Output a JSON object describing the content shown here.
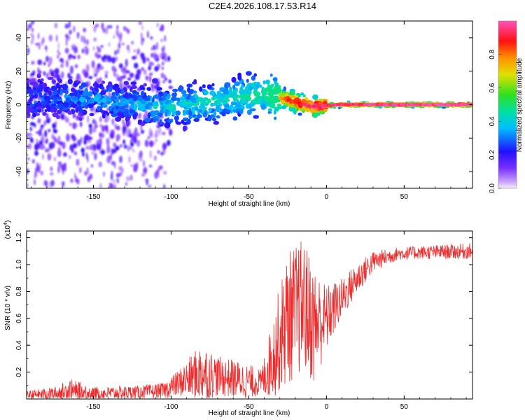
{
  "title": "C2E4.2026.108.17.53.R14",
  "chart_data": [
    {
      "type": "heatmap",
      "name": "spectrogram",
      "xlabel": "Height of straight line (km)",
      "ylabel": "Frequency (Hz)",
      "xlim": [
        -193,
        94
      ],
      "ylim": [
        -50,
        50
      ],
      "xticks": [
        -150,
        -100,
        -50,
        0,
        50
      ],
      "yticks": [
        -40,
        -20,
        0,
        20,
        40
      ],
      "xtick_labels": [
        "-150",
        "-100",
        "-50",
        "0",
        "50"
      ],
      "ytick_labels": [
        "-40",
        "-20",
        "0",
        "20",
        "40"
      ],
      "colorbar": {
        "label": "Normalized spectral amplitude",
        "range": [
          0,
          1
        ],
        "ticks": [
          0.0,
          0.2,
          0.4,
          0.6,
          0.8
        ],
        "tick_labels": [
          "0.0",
          "0.2",
          "0.4",
          "0.6",
          "0.8"
        ]
      },
      "ridge": [
        {
          "x": -193,
          "f": 4,
          "amp": 0.2
        },
        {
          "x": -150,
          "f": 3,
          "amp": 0.25
        },
        {
          "x": -100,
          "f": -2,
          "amp": 0.35
        },
        {
          "x": -60,
          "f": 4,
          "amp": 0.4
        },
        {
          "x": -40,
          "f": 6,
          "amp": 0.45
        },
        {
          "x": -25,
          "f": 3,
          "amp": 0.85
        },
        {
          "x": -10,
          "f": -1,
          "amp": 0.95
        },
        {
          "x": 10,
          "f": 0,
          "amp": 0.95
        },
        {
          "x": 94,
          "f": 0,
          "amp": 1.0
        }
      ]
    },
    {
      "type": "line",
      "name": "snr",
      "xlabel": "Height of straight line (km)",
      "ylabel": "SNR (10 * v/v)",
      "yscale_label": "(x10",
      "yscale_exp": "4",
      "xlim": [
        -193,
        94
      ],
      "ylim": [
        0,
        1.25
      ],
      "xticks": [
        -150,
        -100,
        -50,
        0,
        50
      ],
      "yticks": [
        0.2,
        0.4,
        0.6,
        0.8,
        1.0,
        1.2
      ],
      "xtick_labels": [
        "-150",
        "-100",
        "-50",
        "0",
        "50"
      ],
      "ytick_labels": [
        "0.2",
        "0.4",
        "0.6",
        "0.8",
        "1.0",
        "1.2"
      ],
      "color": "#ee2a2a",
      "envelope": [
        {
          "x": -193,
          "mean": 0.03,
          "noise": 0.03
        },
        {
          "x": -175,
          "mean": 0.04,
          "noise": 0.05
        },
        {
          "x": -165,
          "mean": 0.06,
          "noise": 0.09
        },
        {
          "x": -150,
          "mean": 0.04,
          "noise": 0.05
        },
        {
          "x": -120,
          "mean": 0.05,
          "noise": 0.05
        },
        {
          "x": -105,
          "mean": 0.06,
          "noise": 0.06
        },
        {
          "x": -95,
          "mean": 0.12,
          "noise": 0.1
        },
        {
          "x": -80,
          "mean": 0.2,
          "noise": 0.22
        },
        {
          "x": -70,
          "mean": 0.17,
          "noise": 0.15
        },
        {
          "x": -55,
          "mean": 0.14,
          "noise": 0.14
        },
        {
          "x": -42,
          "mean": 0.12,
          "noise": 0.1
        },
        {
          "x": -35,
          "mean": 0.3,
          "noise": 0.3
        },
        {
          "x": -25,
          "mean": 0.6,
          "noise": 0.5
        },
        {
          "x": -15,
          "mean": 0.7,
          "noise": 0.5
        },
        {
          "x": -8,
          "mean": 0.55,
          "noise": 0.45
        },
        {
          "x": 0,
          "mean": 0.6,
          "noise": 0.25
        },
        {
          "x": 10,
          "mean": 0.75,
          "noise": 0.15
        },
        {
          "x": 20,
          "mean": 0.9,
          "noise": 0.12
        },
        {
          "x": 30,
          "mean": 1.02,
          "noise": 0.08
        },
        {
          "x": 45,
          "mean": 1.08,
          "noise": 0.05
        },
        {
          "x": 60,
          "mean": 1.09,
          "noise": 0.05
        },
        {
          "x": 94,
          "mean": 1.1,
          "noise": 0.06
        }
      ]
    }
  ]
}
